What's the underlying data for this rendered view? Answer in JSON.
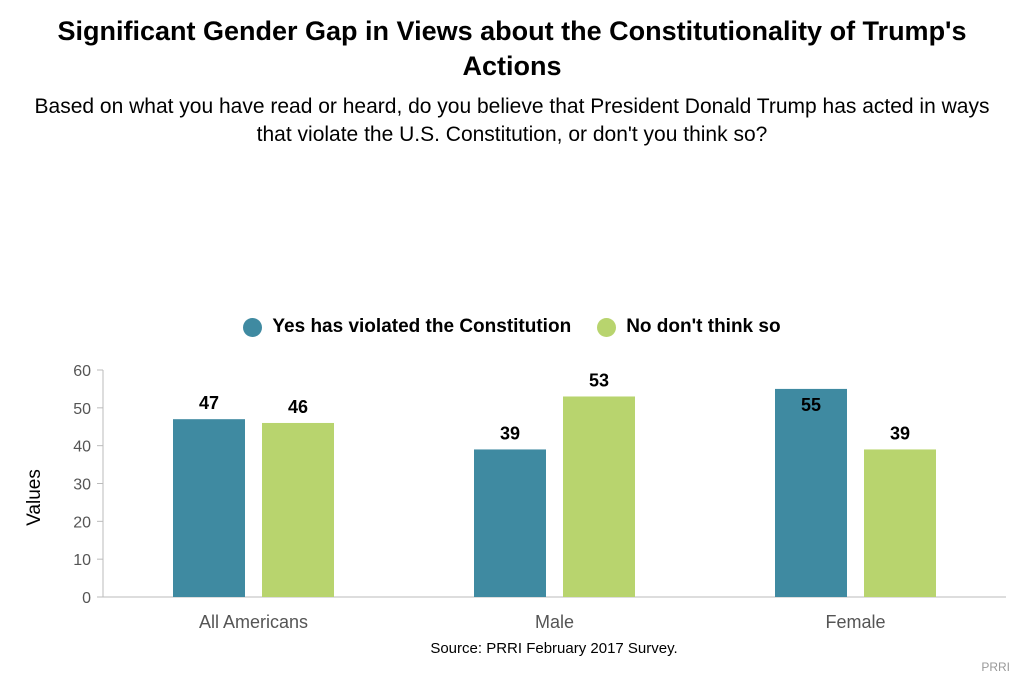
{
  "chart_data": {
    "type": "bar",
    "title": "Significant Gender Gap in Views about the Constitutionality of Trump's Actions",
    "subtitle": "Based on what you have read or heard, do you believe that President Donald Trump has acted in ways that violate the U.S. Constitution, or don't you think so?",
    "categories": [
      "All Americans",
      "Male",
      "Female"
    ],
    "series": [
      {
        "name": "Yes has violated the Constitution",
        "values": [
          47,
          39,
          55
        ],
        "color": "#3f8aa1"
      },
      {
        "name": "No don't think so",
        "values": [
          46,
          53,
          39
        ],
        "color": "#b8d46e"
      }
    ],
    "ylabel": "Values",
    "xlabel": "",
    "ylim": [
      0,
      60
    ],
    "yticks": [
      0,
      10,
      20,
      30,
      40,
      50,
      60
    ],
    "legend": "top-center",
    "grid": false,
    "source": "Source: PRRI February 2017 Survey.",
    "credit": "PRRI"
  }
}
